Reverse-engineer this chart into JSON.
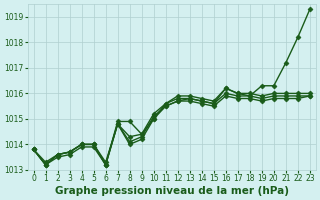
{
  "x": [
    0,
    1,
    2,
    3,
    4,
    5,
    6,
    7,
    8,
    9,
    10,
    11,
    12,
    13,
    14,
    15,
    16,
    17,
    18,
    19,
    20,
    21,
    22,
    23
  ],
  "lines": [
    [
      1013.8,
      1013.2,
      1013.6,
      1013.7,
      1014.0,
      1014.0,
      1013.2,
      1014.8,
      1014.0,
      1014.2,
      1015.0,
      1015.6,
      1015.8,
      1015.8,
      1015.7,
      1015.6,
      1016.2,
      1016.0,
      1015.9,
      1016.3,
      1016.3,
      1017.2,
      1018.2,
      1019.3
    ],
    [
      1013.8,
      1013.2,
      1013.6,
      1013.7,
      1014.0,
      1014.0,
      1013.2,
      1014.9,
      1014.9,
      1014.4,
      1015.2,
      1015.6,
      1015.9,
      1015.9,
      1015.8,
      1015.7,
      1016.2,
      1016.0,
      1016.0,
      1015.9,
      1016.0,
      1016.0,
      1016.0,
      1016.0
    ],
    [
      1013.8,
      1013.3,
      1013.6,
      1013.7,
      1014.0,
      1014.0,
      1013.3,
      1014.8,
      1014.3,
      1014.4,
      1015.0,
      1015.5,
      1015.7,
      1015.8,
      1015.7,
      1015.6,
      1016.0,
      1015.9,
      1015.9,
      1015.8,
      1015.9,
      1015.9,
      1015.9,
      1015.9
    ],
    [
      1013.8,
      1013.2,
      1013.5,
      1013.6,
      1013.9,
      1013.9,
      1013.2,
      1014.8,
      1014.1,
      1014.3,
      1015.1,
      1015.5,
      1015.7,
      1015.7,
      1015.6,
      1015.5,
      1015.9,
      1015.8,
      1015.8,
      1015.7,
      1015.8,
      1015.8,
      1015.8,
      1015.9
    ]
  ],
  "line_colors": [
    "#1a5c1a",
    "#1a5c1a",
    "#1a5c1a",
    "#1a5c1a"
  ],
  "marker": "D",
  "marker_size": 2.5,
  "line_width": 1.0,
  "ylim": [
    1013.0,
    1019.5
  ],
  "yticks": [
    1013,
    1014,
    1015,
    1016,
    1017,
    1018,
    1019
  ],
  "xlim": [
    -0.5,
    23.5
  ],
  "xticks": [
    0,
    1,
    2,
    3,
    4,
    5,
    6,
    7,
    8,
    9,
    10,
    11,
    12,
    13,
    14,
    15,
    16,
    17,
    18,
    19,
    20,
    21,
    22,
    23
  ],
  "xlabel": "Graphe pression niveau de la mer (hPa)",
  "bg_color": "#d4f0f0",
  "grid_color": "#b0d0d0",
  "line_color": "#1a5c1a",
  "tick_fontsize": 5.5,
  "label_fontsize": 7.5,
  "title": ""
}
